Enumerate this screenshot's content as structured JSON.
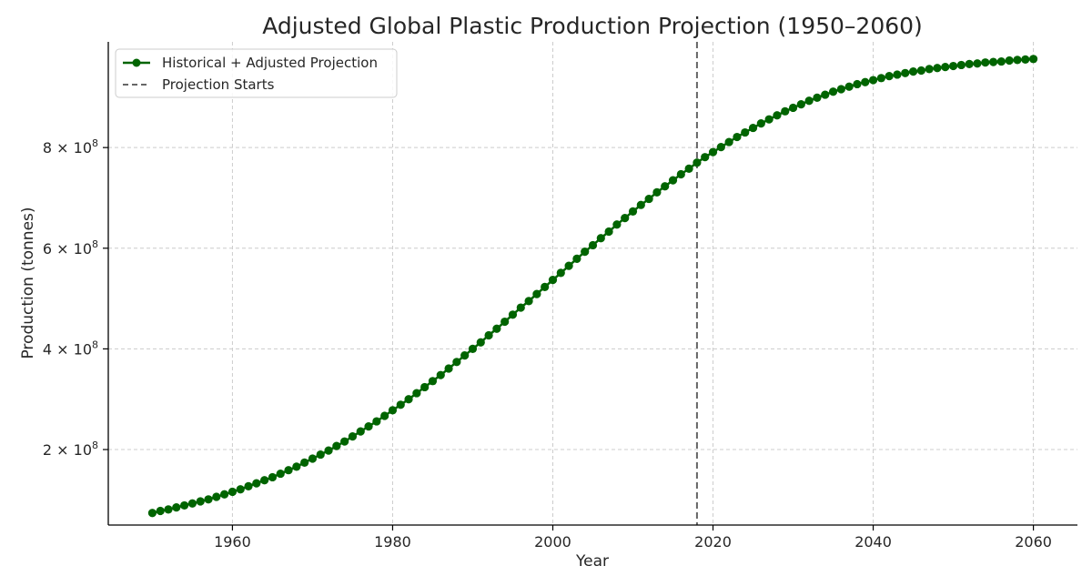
{
  "chart_data": {
    "type": "line",
    "title": "Adjusted Global Plastic Production Projection (1950–2060)",
    "xlabel": "Year",
    "ylabel": "Production (tonnes)",
    "xlim": [
      1944.5,
      2065.5
    ],
    "ylim": [
      50000000,
      1010000000
    ],
    "x_ticks": [
      1960,
      1980,
      2000,
      2020,
      2040,
      2060
    ],
    "x_tick_labels": [
      "1960",
      "1980",
      "2000",
      "2020",
      "2040",
      "2060"
    ],
    "y_ticks": [
      200000000,
      400000000,
      600000000,
      800000000
    ],
    "y_tick_labels": [
      {
        "base": "2 × 10",
        "exp": "8"
      },
      {
        "base": "4 × 10",
        "exp": "8"
      },
      {
        "base": "6 × 10",
        "exp": "8"
      },
      {
        "base": "8 × 10",
        "exp": "8"
      }
    ],
    "grid": true,
    "legend_position": "top-left",
    "series": [
      {
        "name": "Historical + Adjusted Projection",
        "color": "#006400",
        "marker": "circle",
        "x_start": 1950,
        "x_step": 1,
        "values": [
          74000000,
          78000000,
          81000000,
          85000000,
          89000000,
          93000000,
          97000000,
          101000000,
          106000000,
          111000000,
          116000000,
          121000000,
          127000000,
          133000000,
          139000000,
          145000000,
          152000000,
          159000000,
          166000000,
          174000000,
          182000000,
          190000000,
          198000000,
          207000000,
          216000000,
          226000000,
          236000000,
          246000000,
          256000000,
          267000000,
          278000000,
          289000000,
          300000000,
          312000000,
          324000000,
          336000000,
          348000000,
          361000000,
          374000000,
          387000000,
          400000000,
          413000000,
          427000000,
          440000000,
          454000000,
          468000000,
          482000000,
          495000000,
          509000000,
          523000000,
          537000000,
          551000000,
          565000000,
          579000000,
          593000000,
          606000000,
          620000000,
          633000000,
          647000000,
          660000000,
          673000000,
          686000000,
          698000000,
          711000000,
          723000000,
          735000000,
          747000000,
          758000000,
          770000000,
          781000000,
          791000000,
          801000000,
          811000000,
          821000000,
          830000000,
          839000000,
          848000000,
          856000000,
          864000000,
          872000000,
          879000000,
          886000000,
          893000000,
          899000000,
          905000000,
          911000000,
          916000000,
          921000000,
          926000000,
          930000000,
          934000000,
          938000000,
          942000000,
          945000000,
          948000000,
          951000000,
          953000000,
          956000000,
          958000000,
          960000000,
          962000000,
          964000000,
          966000000,
          967000000,
          969000000,
          970000000,
          971000000,
          973000000,
          974000000,
          975000000,
          976000000
        ]
      },
      {
        "name": "Projection Starts",
        "type": "vline",
        "x": 2018,
        "color": "#666666",
        "linestyle": "dashed"
      }
    ]
  }
}
